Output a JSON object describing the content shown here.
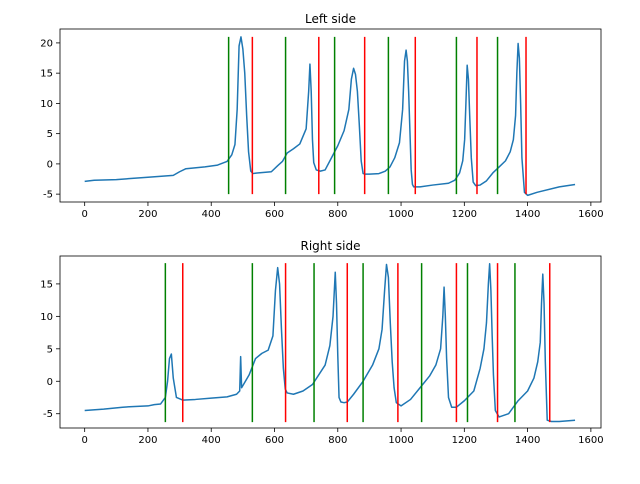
{
  "chart_data": [
    {
      "type": "line",
      "title": "Left side",
      "xlim": [
        -78,
        1632
      ],
      "ylim": [
        -6.3,
        22.3
      ],
      "xticks": [
        0,
        200,
        400,
        600,
        800,
        1000,
        1200,
        1400,
        1600
      ],
      "yticks": [
        -5,
        0,
        5,
        10,
        15,
        20
      ],
      "line_color": "#1f77b4",
      "vline_range": [
        -5,
        21
      ],
      "green_lines": {
        "color": "#008000",
        "x": [
          455,
          635,
          790,
          960,
          1175,
          1305
        ]
      },
      "red_lines": {
        "color": "#ff0000",
        "x": [
          530,
          740,
          885,
          1045,
          1240,
          1395
        ]
      },
      "series": [
        {
          "x": [
            0,
            30,
            100,
            200,
            280,
            300,
            320,
            380,
            420,
            450,
            465,
            475,
            482,
            488,
            494,
            500,
            506,
            512,
            518,
            525,
            532,
            545,
            590,
            610,
            625,
            640,
            660,
            680,
            700,
            708,
            712,
            716,
            720,
            724,
            732,
            745,
            760,
            780,
            800,
            820,
            835,
            843,
            850,
            856,
            862,
            868,
            874,
            880,
            888,
            900,
            930,
            950,
            965,
            980,
            995,
            1005,
            1011,
            1016,
            1020,
            1024,
            1028,
            1032,
            1036,
            1040,
            1060,
            1100,
            1150,
            1170,
            1185,
            1195,
            1201,
            1205,
            1209,
            1213,
            1217,
            1222,
            1228,
            1236,
            1250,
            1270,
            1290,
            1310,
            1330,
            1345,
            1355,
            1362,
            1366,
            1370,
            1374,
            1378,
            1382,
            1390,
            1400,
            1430,
            1500,
            1550
          ],
          "y": [
            -2.9,
            -2.7,
            -2.6,
            -2.2,
            -1.9,
            -1.3,
            -0.8,
            -0.5,
            -0.2,
            0.4,
            1.5,
            3.2,
            9.0,
            19.5,
            21.0,
            19.0,
            15.0,
            8.0,
            2.0,
            -1.2,
            -1.6,
            -1.5,
            -1.3,
            -0.3,
            0.4,
            1.8,
            2.5,
            3.3,
            5.8,
            12.0,
            16.5,
            12.0,
            4.0,
            0.2,
            -1.0,
            -1.2,
            -1.0,
            1.0,
            3.0,
            5.5,
            9.0,
            14.0,
            15.8,
            14.8,
            12.0,
            6.5,
            0.5,
            -1.6,
            -1.7,
            -1.7,
            -1.6,
            -1.2,
            -0.5,
            1.0,
            3.5,
            9.0,
            17.0,
            18.8,
            17.0,
            12.0,
            5.5,
            -1.0,
            -3.4,
            -3.8,
            -3.8,
            -3.5,
            -3.2,
            -2.7,
            -1.5,
            0.5,
            4.0,
            10.0,
            16.3,
            14.0,
            8.0,
            1.0,
            -3.0,
            -3.6,
            -3.5,
            -2.8,
            -1.5,
            -0.5,
            0.5,
            2.0,
            4.0,
            8.0,
            15.0,
            19.9,
            17.5,
            10.0,
            1.0,
            -4.7,
            -5.2,
            -4.7,
            -3.8,
            -3.4
          ]
        }
      ]
    },
    {
      "type": "line",
      "title": "Right side",
      "xlim": [
        -78,
        1632
      ],
      "ylim": [
        -7.2,
        19.3
      ],
      "xticks": [
        0,
        200,
        400,
        600,
        800,
        1000,
        1200,
        1400,
        1600
      ],
      "yticks": [
        -5,
        0,
        5,
        10,
        15
      ],
      "line_color": "#1f77b4",
      "vline_range": [
        -6.3,
        18.2
      ],
      "green_lines": {
        "color": "#008000",
        "x": [
          255,
          530,
          725,
          880,
          1065,
          1210,
          1360
        ]
      },
      "red_lines": {
        "color": "#ff0000",
        "x": [
          310,
          635,
          830,
          990,
          1175,
          1305,
          1470
        ]
      },
      "series": [
        {
          "x": [
            0,
            60,
            120,
            150,
            200,
            220,
            240,
            255,
            262,
            268,
            274,
            280,
            290,
            310,
            350,
            400,
            450,
            480,
            490,
            493,
            496,
            520,
            540,
            560,
            580,
            595,
            603,
            610,
            616,
            622,
            628,
            634,
            640,
            660,
            690,
            720,
            760,
            775,
            785,
            792,
            796,
            800,
            804,
            810,
            820,
            830,
            850,
            880,
            910,
            930,
            940,
            948,
            954,
            960,
            966,
            972,
            978,
            985,
            1000,
            1030,
            1060,
            1090,
            1110,
            1125,
            1132,
            1136,
            1140,
            1144,
            1150,
            1160,
            1175,
            1200,
            1230,
            1250,
            1262,
            1270,
            1276,
            1280,
            1284,
            1288,
            1292,
            1298,
            1310,
            1340,
            1370,
            1400,
            1420,
            1432,
            1440,
            1444,
            1448,
            1452,
            1456,
            1462,
            1475,
            1500,
            1550
          ],
          "y": [
            -4.5,
            -4.3,
            -4.0,
            -3.9,
            -3.8,
            -3.6,
            -3.5,
            -2.5,
            0.0,
            3.5,
            4.2,
            0.5,
            -2.5,
            -2.9,
            -2.8,
            -2.6,
            -2.4,
            -2.0,
            -1.5,
            3.8,
            -1.0,
            1.0,
            3.5,
            4.3,
            4.8,
            7.0,
            14.0,
            17.5,
            15.0,
            8.0,
            2.0,
            -1.2,
            -1.8,
            -2.0,
            -1.5,
            -0.5,
            2.5,
            5.5,
            10.0,
            16.8,
            12.0,
            4.0,
            -2.5,
            -3.2,
            -3.3,
            -3.2,
            -2.0,
            0.0,
            2.5,
            5.0,
            8.0,
            14.0,
            18.0,
            16.0,
            9.0,
            3.0,
            -1.0,
            -3.3,
            -3.8,
            -2.8,
            -1.0,
            0.8,
            2.5,
            5.0,
            10.0,
            14.5,
            10.0,
            3.5,
            -2.5,
            -4.0,
            -4.0,
            -3.0,
            -1.5,
            2.0,
            5.0,
            9.0,
            15.0,
            18.1,
            14.0,
            7.0,
            1.0,
            -4.5,
            -5.5,
            -5.0,
            -3.0,
            -1.5,
            0.5,
            3.0,
            6.0,
            12.0,
            16.5,
            12.0,
            3.0,
            -6.0,
            -6.2,
            -6.2,
            -6.0
          ]
        }
      ]
    }
  ]
}
